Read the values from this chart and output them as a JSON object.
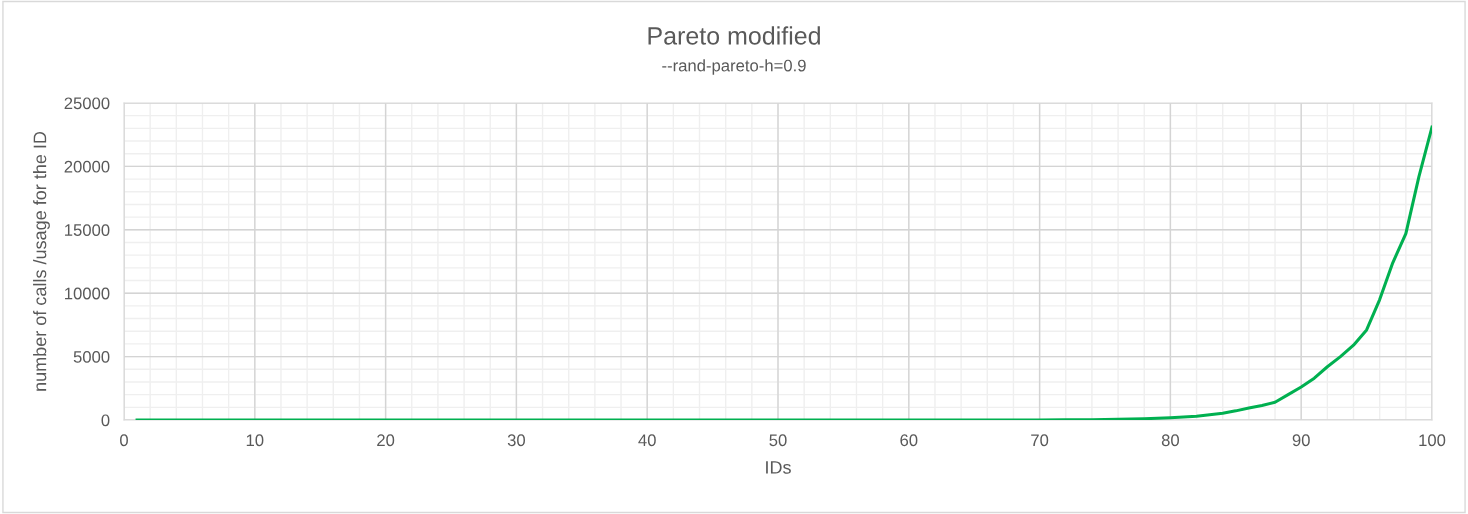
{
  "chart_data": {
    "type": "line",
    "title": "Pareto modified",
    "subtitle": "--rand-pareto-h=0.9",
    "xlabel": "IDs",
    "ylabel": "number of calls /usage for the ID",
    "series": [
      {
        "color": "#00b050",
        "x": [
          1,
          10,
          20,
          30,
          40,
          50,
          60,
          70,
          72,
          74,
          76,
          78,
          80,
          81,
          82,
          83,
          84,
          85,
          86,
          87,
          88,
          89,
          90,
          91,
          92,
          93,
          94,
          95,
          96,
          97,
          98,
          99,
          100
        ],
        "values": [
          0,
          0,
          0,
          0,
          0,
          0,
          0,
          0,
          10,
          20,
          50,
          100,
          180,
          230,
          300,
          420,
          530,
          720,
          950,
          1150,
          1400,
          2000,
          2600,
          3300,
          4200,
          5000,
          5900,
          7100,
          9500,
          12400,
          14700,
          19200,
          23100
        ]
      }
    ],
    "xlim": [
      0,
      100
    ],
    "xticks": [
      0,
      10,
      20,
      30,
      40,
      50,
      60,
      70,
      80,
      90,
      100
    ],
    "ylim": [
      0,
      25000
    ],
    "yticks": [
      0,
      5000,
      10000,
      15000,
      20000,
      25000
    ],
    "grid": true,
    "marker": "none",
    "line_style": "solid",
    "legend": false
  }
}
